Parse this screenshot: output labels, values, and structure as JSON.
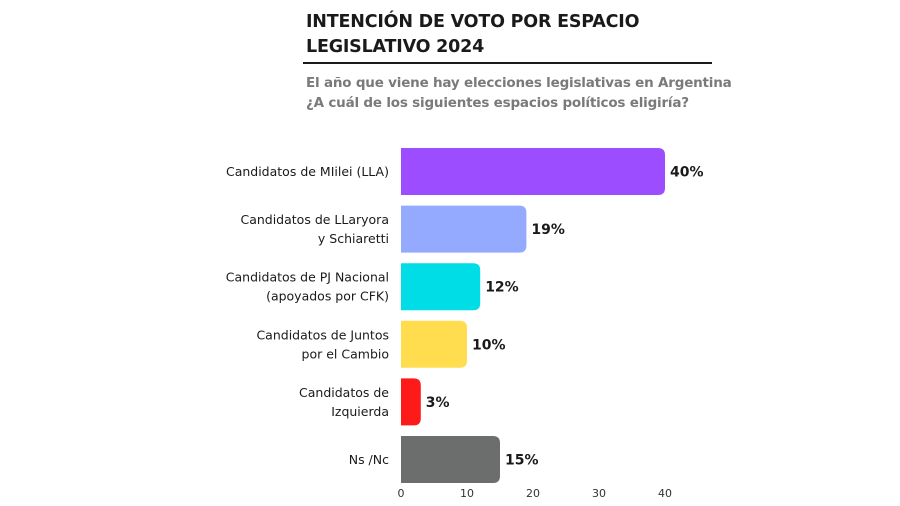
{
  "header": {
    "title_line1": "INTENCIÓN DE VOTO POR ESPACIO",
    "title_line2": "LEGISLATIVO 2024",
    "subtitle_line1": "El año que viene hay elecciones legislativas en Argentina",
    "subtitle_line2": "¿A cuál de los siguientes espacios políticos eligiría?"
  },
  "chart_data": {
    "type": "bar",
    "orientation": "horizontal",
    "title": "INTENCIÓN DE VOTO POR ESPACIO LEGISLATIVO 2024",
    "subtitle": "El año que viene hay elecciones legislativas en Argentina ¿A cuál de los siguientes espacios políticos eligiría?",
    "categories": [
      [
        "Candidatos de MIilei (LLA)"
      ],
      [
        "Candidatos de LLaryora",
        "y Schiaretti"
      ],
      [
        "Candidatos de PJ Nacional",
        "(apoyados por CFK)"
      ],
      [
        "Candidatos de Juntos",
        "por el Cambio"
      ],
      [
        "Candidatos de",
        "Izquierda"
      ],
      [
        "Ns /Nc"
      ]
    ],
    "values": [
      40,
      19,
      12,
      10,
      3,
      15
    ],
    "value_labels": [
      "40%",
      "19%",
      "12%",
      "10%",
      "3%",
      "15%"
    ],
    "colors": [
      "#9b4dff",
      "#93aaff",
      "#00dde6",
      "#ffdd4f",
      "#ff1a1a",
      "#6b6e6c"
    ],
    "xlim": [
      0,
      40
    ],
    "xticks": [
      0,
      10,
      20,
      30,
      40
    ],
    "xlabel": "",
    "ylabel": "",
    "grid": false,
    "legend": "none"
  }
}
